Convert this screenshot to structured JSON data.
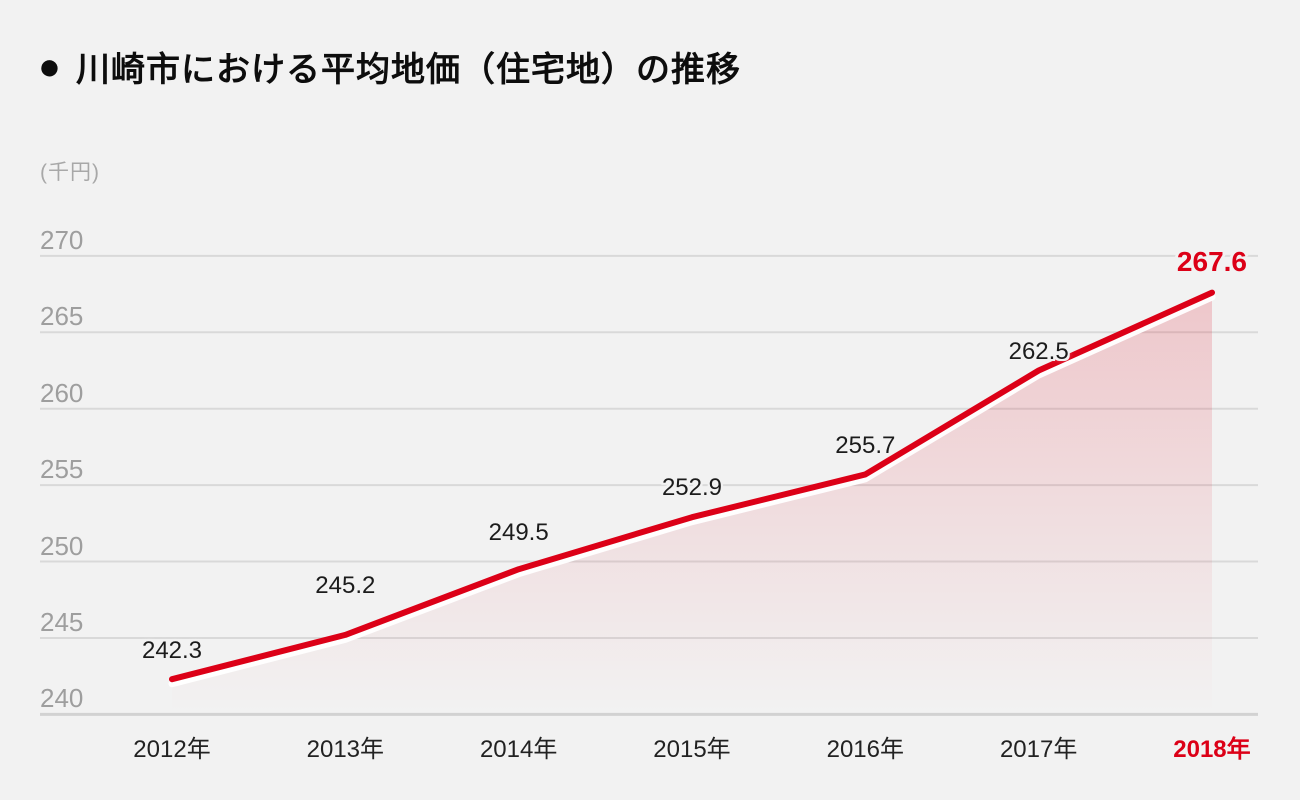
{
  "title": {
    "bullet": "●",
    "text": "川崎市における平均地価（住宅地）の推移"
  },
  "y_axis": {
    "unit_label": "(千円)"
  },
  "chart_data": {
    "type": "line",
    "title": "川崎市における平均地価（住宅地）の推移",
    "x_labels": [
      "2012年",
      "2013年",
      "2014年",
      "2015年",
      "2016年",
      "2017年",
      "2018年"
    ],
    "values": [
      242.3,
      245.2,
      249.5,
      252.9,
      255.7,
      262.5,
      267.6
    ],
    "ylabel": "(千円)",
    "yticks": [
      270,
      265,
      260,
      255,
      250,
      245,
      240
    ],
    "ylim": [
      240,
      273
    ],
    "grid": true,
    "legend": "none",
    "area_fill": true,
    "highlight_last_index": 6,
    "colors": {
      "line": "#dc0017",
      "accent_text": "#dc0017",
      "area_top": "rgba(220,0,23,0.18)",
      "area_bottom": "rgba(220,0,23,0)",
      "text": "#1c1c1c",
      "muted": "#9e9e9e",
      "grid": "#d9d9d9",
      "axis": "#d2d2d2",
      "background": "#f2f2f2"
    }
  }
}
